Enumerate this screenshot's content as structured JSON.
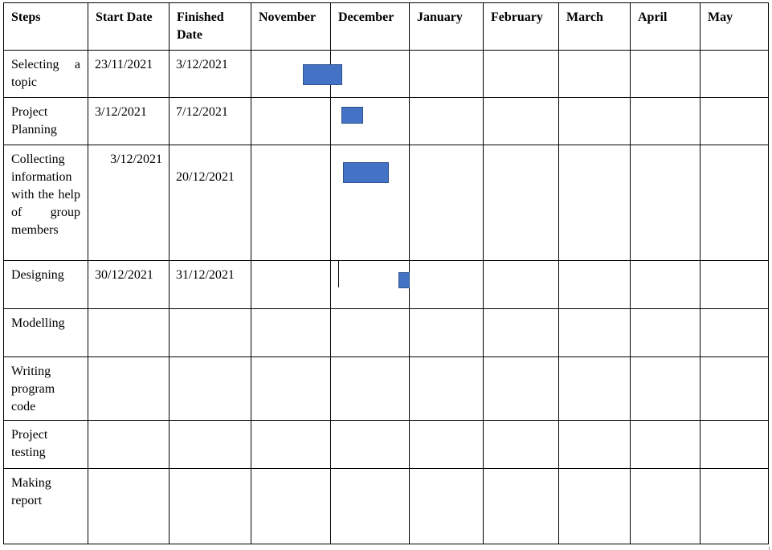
{
  "headers": {
    "steps": "Steps",
    "start_date": "Start Date",
    "finished_date": "Finished Date",
    "months": [
      "November",
      "December",
      "January",
      "February",
      "March",
      "April",
      "May"
    ]
  },
  "rows": [
    {
      "step": "Selecting a topic",
      "start": "23/11/2021",
      "end": "3/12/2021"
    },
    {
      "step": "Project Planning",
      "start": "3/12/2021",
      "end": "7/12/2021"
    },
    {
      "step": "Collecting information with the help of group members",
      "start": "3/12/2021",
      "end": "20/12/2021"
    },
    {
      "step": "Designing",
      "start": "30/12/2021",
      "end": "31/12/2021"
    },
    {
      "step": "Modelling",
      "start": "",
      "end": ""
    },
    {
      "step": "Writing program code",
      "start": "",
      "end": ""
    },
    {
      "step": "Project testing",
      "start": "",
      "end": ""
    },
    {
      "step": "Making report",
      "start": "",
      "end": ""
    }
  ],
  "bar_color": "#4472c4"
}
